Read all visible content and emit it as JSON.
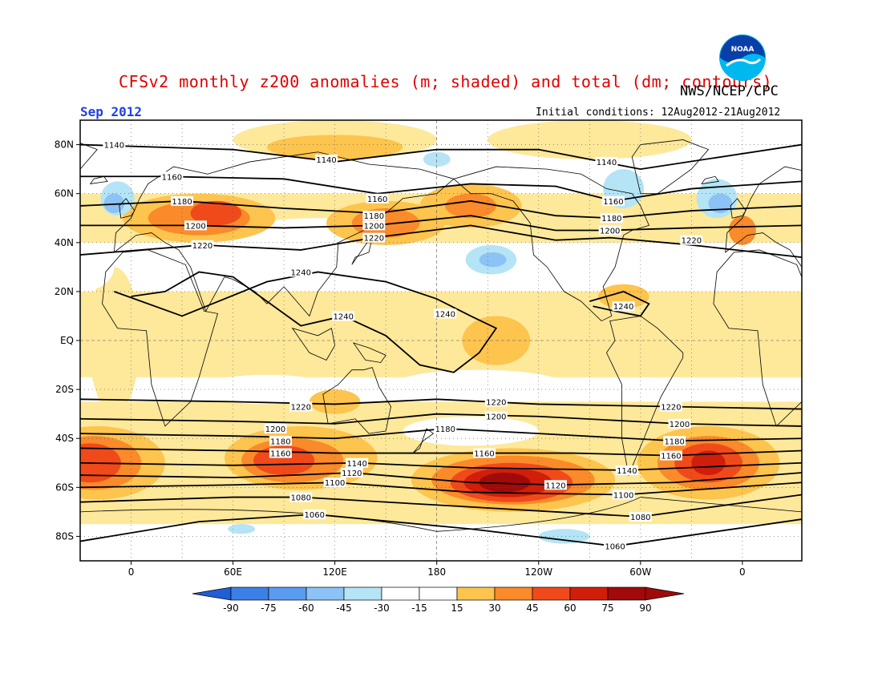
{
  "title": "CFSv2 monthly z200 anomalies (m; shaded) and total (dm; contours)",
  "agency": "NWS/NCEP/CPC",
  "month_label": "Sep 2012",
  "initial_conditions": "Initial conditions: 12Aug2012-21Aug2012",
  "logo_icon": "noaa-logo-icon",
  "logo_text": "NOAA",
  "colors": {
    "neg90": "#1e5fd6",
    "neg75": "#3c80e6",
    "neg60": "#5a9cf0",
    "neg45": "#8cc2f5",
    "neg30": "#b4e4f5",
    "neg15": "#ffffff",
    "pos15": "#fee89a",
    "pos30": "#fdc44e",
    "pos45": "#fa8a2a",
    "pos60": "#f04a1a",
    "pos75": "#d01e0a",
    "pos90": "#a00a0a"
  },
  "y_axis": {
    "labels": [
      "80N",
      "60N",
      "40N",
      "20N",
      "EQ",
      "20S",
      "40S",
      "60S",
      "80S"
    ],
    "values": [
      80,
      60,
      40,
      20,
      0,
      -20,
      -40,
      -60,
      -80
    ]
  },
  "x_axis": {
    "labels": [
      "0",
      "60E",
      "120E",
      "180",
      "120W",
      "60W",
      "0"
    ],
    "values": [
      0,
      60,
      120,
      180,
      240,
      300,
      360
    ]
  },
  "colorbar": {
    "labels": [
      "-90",
      "-75",
      "-60",
      "-45",
      "-30",
      "-15",
      "15",
      "30",
      "45",
      "60",
      "75",
      "90"
    ]
  },
  "contour_labels": [
    {
      "text": "1140",
      "lon": -10,
      "lat": 80
    },
    {
      "text": "1140",
      "lon": 115,
      "lat": 74
    },
    {
      "text": "1140",
      "lon": 280,
      "lat": 73
    },
    {
      "text": "1160",
      "lon": 24,
      "lat": 67
    },
    {
      "text": "1160",
      "lon": 145,
      "lat": 58
    },
    {
      "text": "1160",
      "lon": 284,
      "lat": 57
    },
    {
      "text": "1180",
      "lon": 30,
      "lat": 57
    },
    {
      "text": "1180",
      "lon": 143,
      "lat": 51
    },
    {
      "text": "1180",
      "lon": 283,
      "lat": 50
    },
    {
      "text": "1200",
      "lon": 38,
      "lat": 47
    },
    {
      "text": "1200",
      "lon": 143,
      "lat": 47
    },
    {
      "text": "1200",
      "lon": 282,
      "lat": 45
    },
    {
      "text": "1220",
      "lon": 42,
      "lat": 39
    },
    {
      "text": "1220",
      "lon": 143,
      "lat": 42
    },
    {
      "text": "1220",
      "lon": 330,
      "lat": 41
    },
    {
      "text": "1240",
      "lon": 100,
      "lat": 28
    },
    {
      "text": "1240",
      "lon": 125,
      "lat": 10
    },
    {
      "text": "1240",
      "lon": 185,
      "lat": 11
    },
    {
      "text": "1240",
      "lon": 290,
      "lat": 14
    },
    {
      "text": "1220",
      "lon": 100,
      "lat": -27
    },
    {
      "text": "1220",
      "lon": 215,
      "lat": -25
    },
    {
      "text": "1220",
      "lon": 318,
      "lat": -27
    },
    {
      "text": "1200",
      "lon": 85,
      "lat": -36
    },
    {
      "text": "1200",
      "lon": 215,
      "lat": -31
    },
    {
      "text": "1200",
      "lon": 323,
      "lat": -34
    },
    {
      "text": "1180",
      "lon": 88,
      "lat": -41
    },
    {
      "text": "1180",
      "lon": 185,
      "lat": -36
    },
    {
      "text": "1180",
      "lon": 320,
      "lat": -41
    },
    {
      "text": "1160",
      "lon": 88,
      "lat": -46
    },
    {
      "text": "1160",
      "lon": 208,
      "lat": -46
    },
    {
      "text": "1160",
      "lon": 318,
      "lat": -47
    },
    {
      "text": "1140",
      "lon": 133,
      "lat": -50
    },
    {
      "text": "1140",
      "lon": 292,
      "lat": -53
    },
    {
      "text": "1120",
      "lon": 130,
      "lat": -54
    },
    {
      "text": "1120",
      "lon": 250,
      "lat": -59
    },
    {
      "text": "1100",
      "lon": 120,
      "lat": -58
    },
    {
      "text": "1100",
      "lon": 290,
      "lat": -63
    },
    {
      "text": "1080",
      "lon": 100,
      "lat": -64
    },
    {
      "text": "1080",
      "lon": 300,
      "lat": -72
    },
    {
      "text": "1060",
      "lon": 108,
      "lat": -71
    },
    {
      "text": "1060",
      "lon": 285,
      "lat": -84
    }
  ]
}
